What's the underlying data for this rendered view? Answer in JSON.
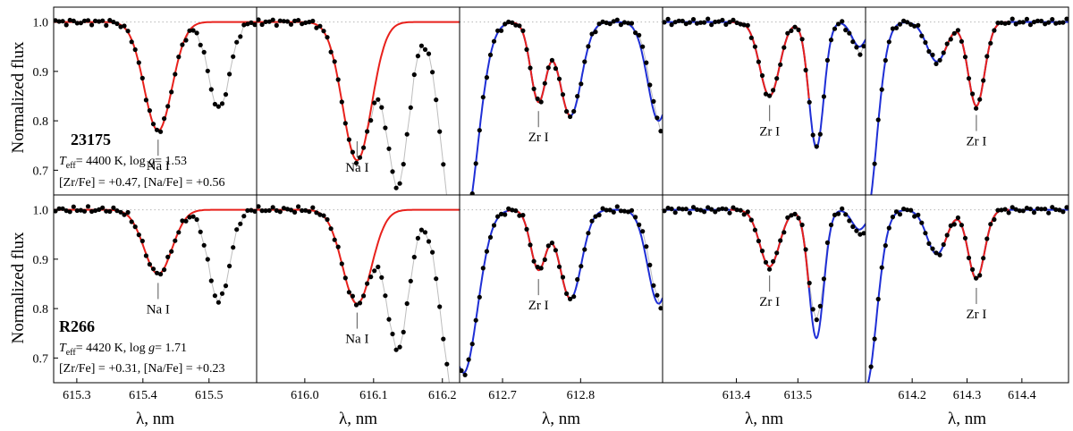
{
  "figure": {
    "ylabel": "Normalized flux",
    "xlabel": "λ, nm",
    "y_ticks": [
      "1.0",
      "0.9",
      "0.8",
      "0.7"
    ],
    "colors": {
      "observed": "#000000",
      "connector": "#bdbdbd",
      "fit_red": "#e8211c",
      "fit_blue": "#1f2fd6",
      "continuum": "#b8b8b8"
    }
  },
  "stars": [
    {
      "name": "23175",
      "teff_text": "= 4400 K, log ",
      "logg_text": "= 1.53",
      "abund_text": "[Zr/Fe] =   +0.47, [Na/Fe] =   +0.56"
    },
    {
      "name": "R266",
      "teff_text": "= 4420 K, log ",
      "logg_text": "= 1.71",
      "abund_text": "[Zr/Fe] = +0.31, [Na/Fe] =   +0.23"
    }
  ],
  "chart_data": {
    "type": "line",
    "ylim": [
      0.65,
      1.03
    ],
    "columns": [
      {
        "xlim": [
          615.265,
          615.572
        ],
        "ticks": [
          "615.3",
          "615.4",
          "615.5"
        ]
      },
      {
        "xlim": [
          615.93,
          616.225
        ],
        "ticks": [
          "616.0",
          "616.1",
          "616.2"
        ]
      },
      {
        "xlim": [
          612.645,
          612.905
        ],
        "ticks": [
          "612.7",
          "612.8"
        ]
      },
      {
        "xlim": [
          613.28,
          613.61
        ],
        "ticks": [
          "613.4",
          "613.5"
        ]
      },
      {
        "xlim": [
          614.115,
          614.485
        ],
        "ticks": [
          "614.2",
          "614.3",
          "614.4"
        ]
      }
    ],
    "panels": [
      {
        "row": 0,
        "col": 0,
        "label": "Na I",
        "line_center": 615.423,
        "observed_lines": [
          {
            "c": 615.423,
            "d": 0.22,
            "w": 0.021
          },
          {
            "c": 615.515,
            "d": 0.175,
            "w": 0.016
          }
        ],
        "red_fit": {
          "c": 615.423,
          "d": 0.22,
          "w": 0.021
        }
      },
      {
        "row": 0,
        "col": 1,
        "label": "Na I",
        "line_center": 616.076,
        "observed_lines": [
          {
            "c": 616.076,
            "d": 0.28,
            "w": 0.021
          },
          {
            "c": 616.135,
            "d": 0.33,
            "w": 0.016
          },
          {
            "c": 616.22,
            "d": 0.45,
            "w": 0.02
          }
        ],
        "red_fit": {
          "c": 616.076,
          "d": 0.28,
          "w": 0.021
        }
      },
      {
        "row": 0,
        "col": 2,
        "label": "Zr I",
        "line_center": 612.746,
        "observed_lines": [
          {
            "c": 612.65,
            "d": 0.42,
            "w": 0.018
          },
          {
            "c": 612.746,
            "d": 0.16,
            "w": 0.01
          },
          {
            "c": 612.787,
            "d": 0.19,
            "w": 0.014
          },
          {
            "c": 612.905,
            "d": 0.22,
            "w": 0.015
          }
        ],
        "blue_fit": [
          {
            "c": 612.65,
            "d": 0.42,
            "w": 0.018
          },
          {
            "c": 612.787,
            "d": 0.19,
            "w": 0.014
          },
          {
            "c": 612.9,
            "d": 0.2,
            "w": 0.014
          }
        ],
        "red_fit": {
          "c": 612.746,
          "d": 0.16,
          "w": 0.01
        }
      },
      {
        "row": 0,
        "col": 3,
        "label": "Zr I",
        "line_center": 613.454,
        "observed_lines": [
          {
            "c": 613.454,
            "d": 0.15,
            "w": 0.016
          },
          {
            "c": 613.53,
            "d": 0.255,
            "w": 0.012
          },
          {
            "c": 613.6,
            "d": 0.06,
            "w": 0.012
          }
        ],
        "blue_fit": [
          {
            "c": 613.53,
            "d": 0.255,
            "w": 0.012
          },
          {
            "c": 613.6,
            "d": 0.05,
            "w": 0.012
          }
        ],
        "red_fit": {
          "c": 613.454,
          "d": 0.15,
          "w": 0.016
        }
      },
      {
        "row": 0,
        "col": 4,
        "label": "Zr I",
        "line_center": 614.317,
        "observed_lines": [
          {
            "c": 614.115,
            "d": 0.4,
            "w": 0.02
          },
          {
            "c": 614.245,
            "d": 0.08,
            "w": 0.018
          },
          {
            "c": 614.317,
            "d": 0.17,
            "w": 0.015
          }
        ],
        "blue_fit": [
          {
            "c": 614.115,
            "d": 0.4,
            "w": 0.02
          },
          {
            "c": 614.245,
            "d": 0.08,
            "w": 0.018
          }
        ],
        "red_fit": {
          "c": 614.317,
          "d": 0.17,
          "w": 0.015
        }
      },
      {
        "row": 1,
        "col": 0,
        "label": "Na I",
        "line_center": 615.423,
        "observed_lines": [
          {
            "c": 615.423,
            "d": 0.13,
            "w": 0.021
          },
          {
            "c": 615.515,
            "d": 0.185,
            "w": 0.016
          }
        ],
        "red_fit": {
          "c": 615.423,
          "d": 0.13,
          "w": 0.021
        }
      },
      {
        "row": 1,
        "col": 1,
        "label": "Na I",
        "line_center": 616.076,
        "observed_lines": [
          {
            "c": 616.076,
            "d": 0.19,
            "w": 0.021
          },
          {
            "c": 616.135,
            "d": 0.28,
            "w": 0.016
          },
          {
            "c": 616.22,
            "d": 0.4,
            "w": 0.02
          }
        ],
        "red_fit": {
          "c": 616.076,
          "d": 0.19,
          "w": 0.021
        }
      },
      {
        "row": 1,
        "col": 2,
        "label": "Zr I",
        "line_center": 612.746,
        "observed_lines": [
          {
            "c": 612.65,
            "d": 0.33,
            "w": 0.018
          },
          {
            "c": 612.746,
            "d": 0.12,
            "w": 0.01
          },
          {
            "c": 612.787,
            "d": 0.18,
            "w": 0.014
          },
          {
            "c": 612.905,
            "d": 0.2,
            "w": 0.015
          }
        ],
        "blue_fit": [
          {
            "c": 612.65,
            "d": 0.33,
            "w": 0.018
          },
          {
            "c": 612.787,
            "d": 0.18,
            "w": 0.014
          },
          {
            "c": 612.9,
            "d": 0.19,
            "w": 0.014
          }
        ],
        "red_fit": {
          "c": 612.746,
          "d": 0.12,
          "w": 0.01
        }
      },
      {
        "row": 1,
        "col": 3,
        "label": "Zr I",
        "line_center": 613.454,
        "observed_lines": [
          {
            "c": 613.454,
            "d": 0.115,
            "w": 0.016
          },
          {
            "c": 613.53,
            "d": 0.225,
            "w": 0.012
          },
          {
            "c": 613.6,
            "d": 0.05,
            "w": 0.012
          }
        ],
        "blue_fit": [
          {
            "c": 613.53,
            "d": 0.26,
            "w": 0.012
          },
          {
            "c": 613.6,
            "d": 0.04,
            "w": 0.012
          }
        ],
        "red_fit": {
          "c": 613.454,
          "d": 0.115,
          "w": 0.016
        }
      },
      {
        "row": 1,
        "col": 4,
        "label": "Zr I",
        "line_center": 614.317,
        "observed_lines": [
          {
            "c": 614.115,
            "d": 0.36,
            "w": 0.02
          },
          {
            "c": 614.245,
            "d": 0.09,
            "w": 0.018
          },
          {
            "c": 614.317,
            "d": 0.14,
            "w": 0.015
          }
        ],
        "blue_fit": [
          {
            "c": 614.115,
            "d": 0.36,
            "w": 0.02
          },
          {
            "c": 614.245,
            "d": 0.09,
            "w": 0.018
          }
        ],
        "red_fit": {
          "c": 614.317,
          "d": 0.14,
          "w": 0.015
        }
      }
    ]
  }
}
